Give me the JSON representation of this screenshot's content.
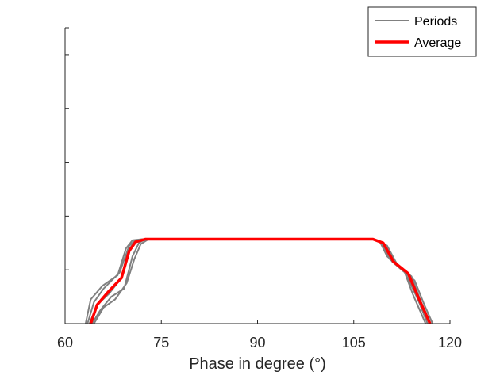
{
  "chart_data": {
    "type": "line",
    "xlabel": "Phase in degree (°)",
    "ylabel": "",
    "xlim": [
      60,
      120
    ],
    "ylim": [
      0,
      5.5
    ],
    "xticks": [
      60,
      75,
      90,
      105,
      120
    ],
    "xtick_labels": [
      "60",
      "75",
      "90",
      "105",
      "120"
    ],
    "yticks": [
      1,
      2,
      3,
      4,
      5
    ],
    "ytick_labels": [
      "",
      "",
      "",
      "",
      ""
    ],
    "grid": false,
    "legend_position": "top-right",
    "colors": {
      "periods": "#808080",
      "average": "#ff0000",
      "axis": "#262626"
    },
    "legend": [
      {
        "key": "periods",
        "label": "Periods"
      },
      {
        "key": "average",
        "label": "Average"
      }
    ],
    "series": [
      {
        "name": "Periods",
        "group": "periods",
        "x": [
          63.5,
          64.5,
          66.0,
          68.5,
          70.0,
          71.0,
          72.5,
          108.0,
          109.5,
          111.0,
          113.5,
          115.0,
          116.5
        ],
        "y": [
          0,
          0.4,
          0.65,
          0.95,
          1.45,
          1.55,
          1.57,
          1.57,
          1.5,
          1.15,
          0.9,
          0.45,
          0
        ]
      },
      {
        "name": "Periods",
        "group": "periods",
        "x": [
          63.8,
          65.0,
          66.8,
          68.8,
          69.8,
          70.8,
          72.5,
          108.0,
          109.2,
          110.6,
          113.0,
          114.8,
          116.8
        ],
        "y": [
          0,
          0.35,
          0.55,
          0.85,
          1.35,
          1.52,
          1.57,
          1.57,
          1.52,
          1.2,
          0.95,
          0.5,
          0
        ]
      },
      {
        "name": "Periods",
        "group": "periods",
        "x": [
          64.2,
          65.5,
          67.2,
          69.2,
          70.5,
          71.5,
          72.5,
          108.0,
          109.8,
          111.5,
          114.0,
          115.5,
          117.0
        ],
        "y": [
          0,
          0.25,
          0.5,
          0.65,
          1.25,
          1.5,
          1.57,
          1.57,
          1.48,
          1.1,
          0.88,
          0.4,
          0
        ]
      },
      {
        "name": "Periods",
        "group": "periods",
        "x": [
          63.2,
          64.0,
          65.8,
          68.2,
          69.5,
          70.5,
          72.0,
          108.0,
          109.0,
          110.2,
          112.8,
          114.2,
          116.2
        ],
        "y": [
          0,
          0.45,
          0.7,
          0.9,
          1.4,
          1.55,
          1.57,
          1.57,
          1.54,
          1.25,
          1.0,
          0.55,
          0
        ]
      },
      {
        "name": "Periods",
        "group": "periods",
        "x": [
          64.5,
          66.0,
          67.8,
          69.6,
          70.8,
          71.8,
          73.0,
          108.0,
          110.2,
          112.0,
          114.5,
          116.0,
          117.3
        ],
        "y": [
          0,
          0.3,
          0.45,
          0.75,
          1.2,
          1.48,
          1.57,
          1.57,
          1.45,
          1.05,
          0.8,
          0.35,
          0
        ]
      },
      {
        "name": "Average",
        "group": "average",
        "x": [
          64.0,
          65.0,
          66.8,
          68.8,
          70.0,
          71.0,
          72.5,
          108.0,
          109.6,
          111.2,
          113.5,
          115.2,
          116.9
        ],
        "y": [
          0,
          0.35,
          0.6,
          0.85,
          1.35,
          1.52,
          1.57,
          1.57,
          1.5,
          1.15,
          0.93,
          0.45,
          0
        ]
      }
    ]
  }
}
